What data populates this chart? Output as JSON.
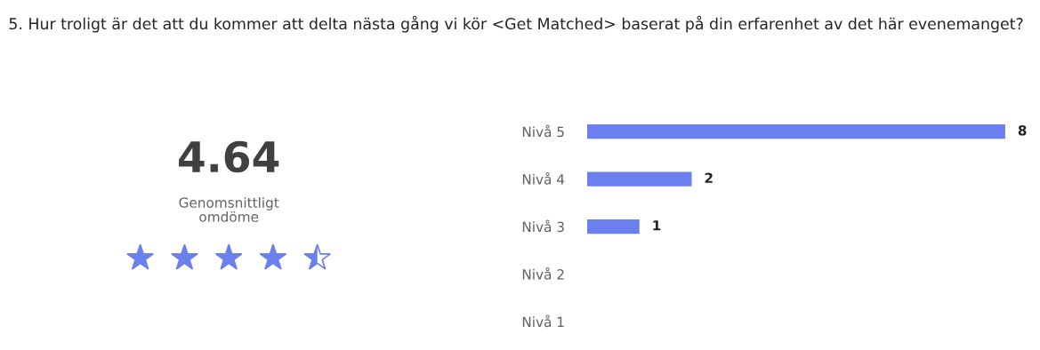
{
  "chart_data": [
    {
      "type": "other",
      "title": "5. Hur troligt är det att du kommer att delta nästa gång vi kör <Get Matched> baserat på din erfarenhet av det här evenemanget?",
      "annotations": [
        "4.64",
        "Genomsnittligt\nomdöme"
      ],
      "color": "#6b7fef"
    },
    {
      "type": "bar",
      "orientation": "horizontal",
      "categories": [
        "Nivå 5",
        "Nivå 4",
        "Nivå 3",
        "Nivå 2",
        "Nivå 1"
      ],
      "values": [
        8,
        2,
        1,
        0,
        0
      ],
      "value_labels": [
        "8",
        "2",
        "1",
        null,
        null
      ],
      "color": "#6b7fef"
    }
  ]
}
